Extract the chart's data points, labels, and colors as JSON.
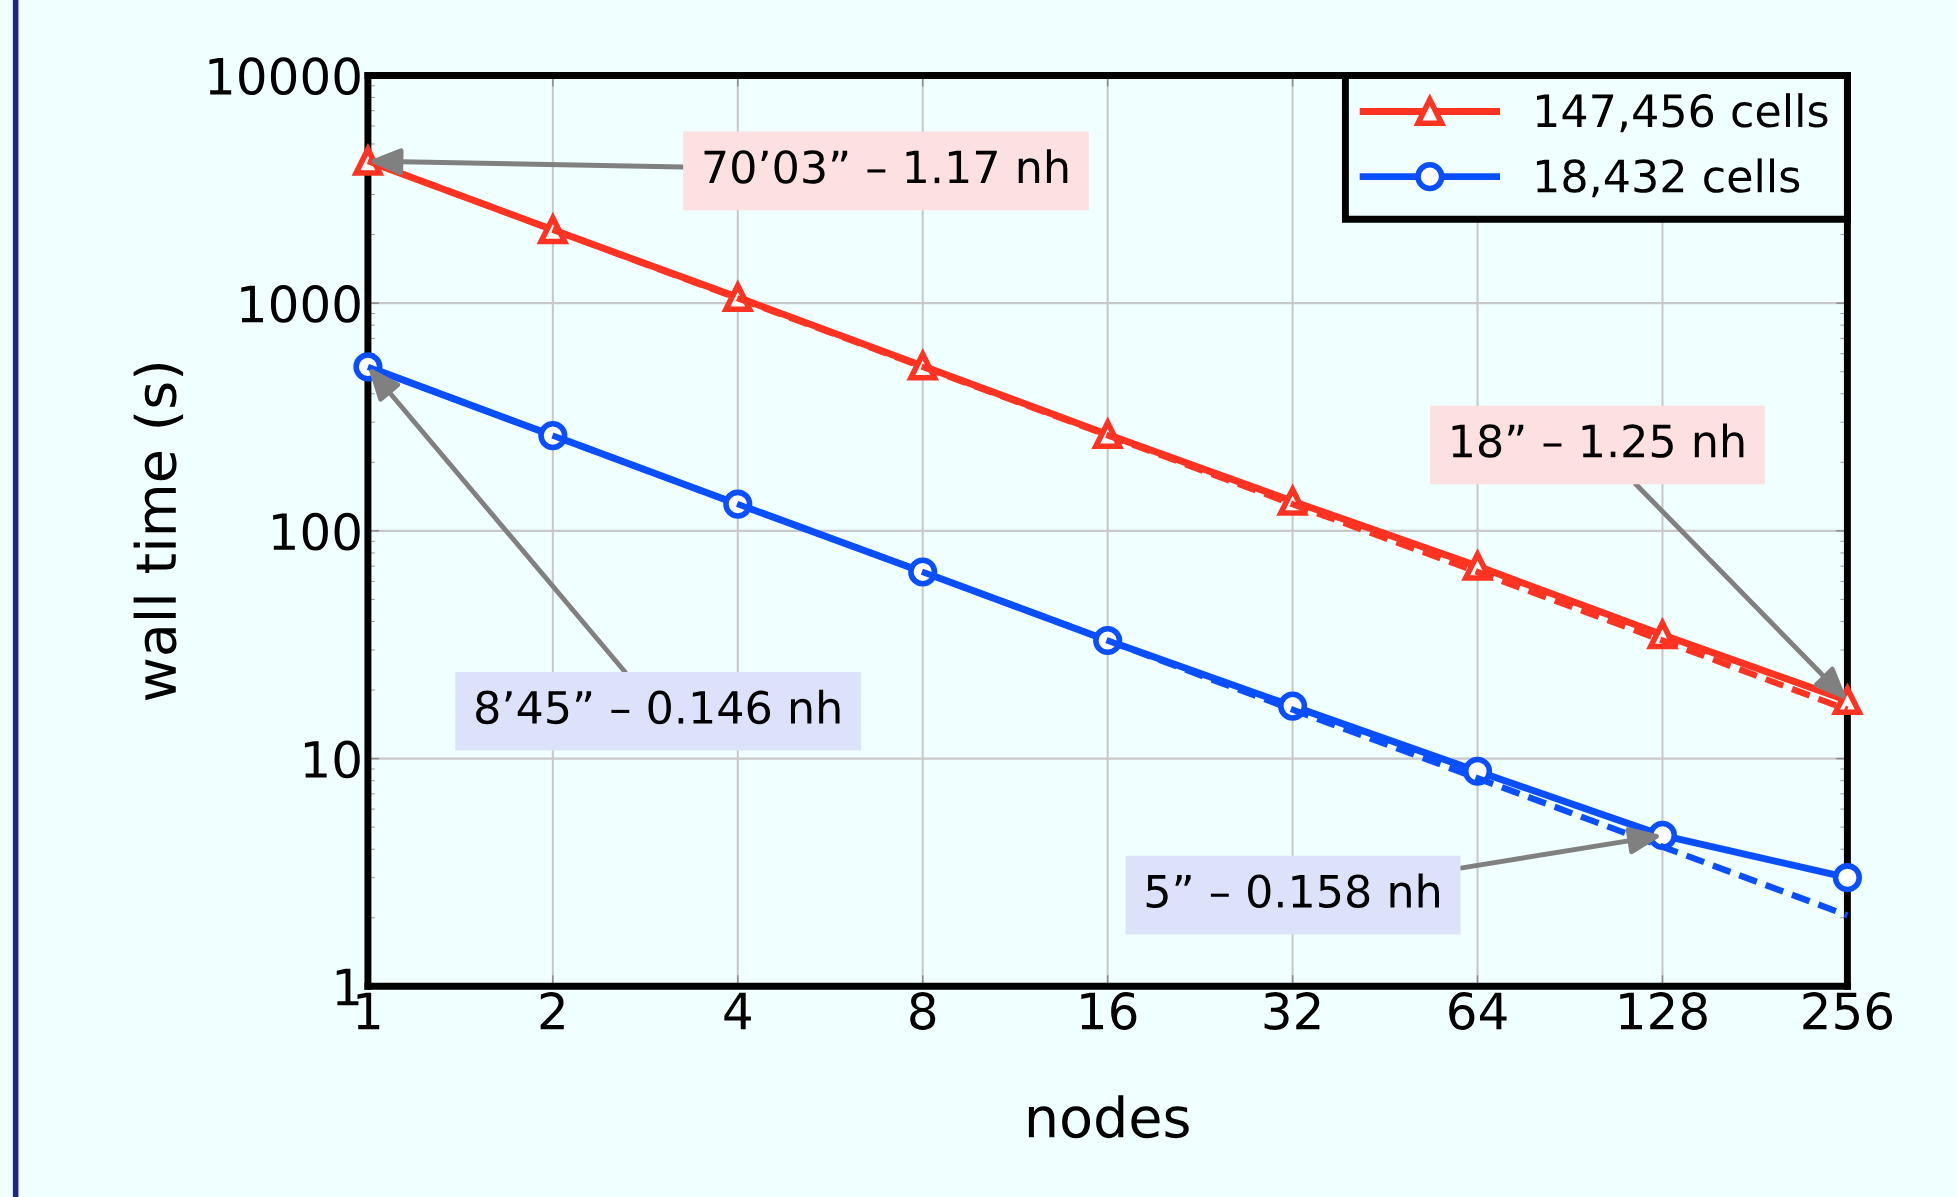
{
  "chart_data": {
    "type": "line",
    "xlabel": "nodes",
    "ylabel": "wall time (s)",
    "log": "xy",
    "grid": true,
    "legend": "top right",
    "line_style": "solid",
    "x": [
      1,
      2,
      4,
      8,
      16,
      32,
      64,
      128,
      256
    ],
    "xlim": [
      1,
      256
    ],
    "xticks": [
      1,
      2,
      4,
      8,
      16,
      32,
      64,
      128,
      256
    ],
    "ylim": [
      1,
      10000
    ],
    "yticks": [
      1,
      10,
      100,
      1000,
      10000
    ],
    "series": [
      {
        "name": "147,456 cells",
        "color": "#ff3322",
        "marker": "triangle",
        "values": [
          4203,
          2100,
          1060,
          530,
          265,
          135,
          70,
          35,
          18
        ]
      },
      {
        "name": "18,432 cells",
        "color": "#0a4fff",
        "marker": "circle",
        "values": [
          525,
          262,
          131,
          66,
          33,
          17,
          8.8,
          4.6,
          3
        ]
      },
      {
        "color": "#ff3322",
        "marker": "none",
        "line_style": "dashed",
        "values": [
          4203,
          2100,
          1050,
          525,
          263,
          131,
          66,
          33,
          16.4
        ]
      },
      {
        "color": "#0a4fff",
        "marker": "none",
        "line_style": "dashed",
        "values": [
          525,
          262,
          131,
          66,
          33,
          16.4,
          8.2,
          4.1,
          2.05
        ]
      }
    ],
    "annotations": [
      {
        "text": "70’03” – 1.17 nh",
        "x": 1,
        "y": 4203
      },
      {
        "text": "8’45” – 0.146 nh",
        "x": 1,
        "y": 525
      },
      {
        "text": "18” – 1.25 nh",
        "x": 256,
        "y": 18
      },
      {
        "text": "5” – 0.158 nh",
        "x": 128,
        "y": 4.6
      }
    ]
  }
}
